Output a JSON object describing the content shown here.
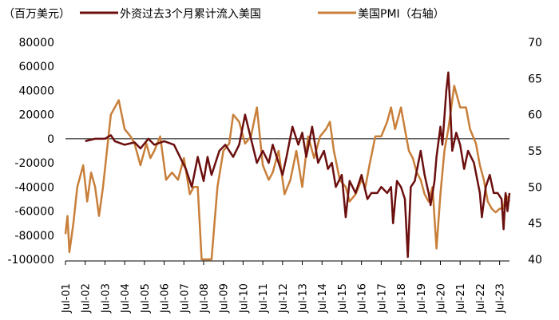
{
  "chart_data": {
    "type": "line",
    "unit_label": "（百万美元）",
    "x_ticks": [
      "Jul-01",
      "Jul-02",
      "Jul-03",
      "Jul-04",
      "Jul-05",
      "Jul-06",
      "Jul-07",
      "Jul-08",
      "Jul-09",
      "Jul-10",
      "Jul-11",
      "Jul-12",
      "Jul-13",
      "Jul-14",
      "Jul-15",
      "Jul-16",
      "Jul-17",
      "Jul-18",
      "Jul-19",
      "Jul-20",
      "Jul-21",
      "Jul-22",
      "Jul-23"
    ],
    "x_range": [
      2001.5,
      2024.0
    ],
    "y_left": {
      "min": -100000,
      "max": 80000,
      "ticks": [
        -100000,
        -80000,
        -60000,
        -40000,
        -20000,
        0,
        20000,
        40000,
        60000,
        80000
      ],
      "tick_labels": [
        "-100000",
        "-80000",
        "-60000",
        "-40000",
        "-20000",
        "0",
        "20000",
        "40000",
        "60000",
        "80000"
      ]
    },
    "y_right": {
      "min": 40,
      "max": 70,
      "ticks": [
        40,
        45,
        50,
        55,
        60,
        65,
        70
      ],
      "tick_labels": [
        "40",
        "45",
        "50",
        "55",
        "60",
        "65",
        "70"
      ]
    },
    "colors": {
      "flows": "#6b0f0f",
      "pmi": "#c87f3a"
    },
    "series": [
      {
        "name": "外资过去3个月累计流入美国",
        "axis": "left",
        "points": [
          [
            2002.5,
            -2000
          ],
          [
            2003.0,
            0
          ],
          [
            2003.5,
            0
          ],
          [
            2003.8,
            3000
          ],
          [
            2004.0,
            -2000
          ],
          [
            2004.5,
            -5000
          ],
          [
            2005.0,
            -3000
          ],
          [
            2005.3,
            -8000
          ],
          [
            2005.7,
            0
          ],
          [
            2006.0,
            -5000
          ],
          [
            2006.5,
            -2000
          ],
          [
            2007.0,
            -5000
          ],
          [
            2007.3,
            -15000
          ],
          [
            2007.6,
            -25000
          ],
          [
            2007.9,
            -40000
          ],
          [
            2008.2,
            -15000
          ],
          [
            2008.5,
            -35000
          ],
          [
            2008.7,
            -15000
          ],
          [
            2008.9,
            -30000
          ],
          [
            2009.3,
            -10000
          ],
          [
            2009.6,
            -5000
          ],
          [
            2010.0,
            -15000
          ],
          [
            2010.3,
            -5000
          ],
          [
            2010.6,
            20000
          ],
          [
            2010.9,
            0
          ],
          [
            2011.2,
            -20000
          ],
          [
            2011.5,
            -10000
          ],
          [
            2011.8,
            -20000
          ],
          [
            2012.0,
            -5000
          ],
          [
            2012.3,
            -20000
          ],
          [
            2012.5,
            -30000
          ],
          [
            2012.7,
            -15000
          ],
          [
            2013.0,
            10000
          ],
          [
            2013.3,
            -5000
          ],
          [
            2013.5,
            5000
          ],
          [
            2013.7,
            -15000
          ],
          [
            2014.0,
            10000
          ],
          [
            2014.3,
            -20000
          ],
          [
            2014.6,
            -10000
          ],
          [
            2014.8,
            -25000
          ],
          [
            2015.0,
            -20000
          ],
          [
            2015.2,
            -40000
          ],
          [
            2015.5,
            -30000
          ],
          [
            2015.7,
            -65000
          ],
          [
            2015.9,
            -35000
          ],
          [
            2016.2,
            -45000
          ],
          [
            2016.5,
            -30000
          ],
          [
            2016.8,
            -50000
          ],
          [
            2017.0,
            -45000
          ],
          [
            2017.3,
            -45000
          ],
          [
            2017.5,
            -40000
          ],
          [
            2017.8,
            -45000
          ],
          [
            2018.0,
            -40000
          ],
          [
            2018.1,
            -70000
          ],
          [
            2018.3,
            -35000
          ],
          [
            2018.5,
            -40000
          ],
          [
            2018.7,
            -50000
          ],
          [
            2018.85,
            -98000
          ],
          [
            2019.0,
            -40000
          ],
          [
            2019.2,
            -35000
          ],
          [
            2019.5,
            -10000
          ],
          [
            2019.7,
            -30000
          ],
          [
            2019.9,
            -45000
          ],
          [
            2020.0,
            -55000
          ],
          [
            2020.2,
            -35000
          ],
          [
            2020.3,
            -15000
          ],
          [
            2020.5,
            10000
          ],
          [
            2020.6,
            -5000
          ],
          [
            2020.8,
            40000
          ],
          [
            2020.9,
            55000
          ],
          [
            2021.0,
            25000
          ],
          [
            2021.1,
            -10000
          ],
          [
            2021.3,
            5000
          ],
          [
            2021.5,
            -5000
          ],
          [
            2021.7,
            -25000
          ],
          [
            2021.9,
            -10000
          ],
          [
            2022.2,
            -20000
          ],
          [
            2022.5,
            -45000
          ],
          [
            2022.6,
            -65000
          ],
          [
            2022.8,
            -40000
          ],
          [
            2023.0,
            -30000
          ],
          [
            2023.2,
            -45000
          ],
          [
            2023.4,
            -45000
          ],
          [
            2023.6,
            -50000
          ],
          [
            2023.7,
            -75000
          ],
          [
            2023.8,
            -45000
          ],
          [
            2023.9,
            -60000
          ],
          [
            2024.0,
            -45000
          ]
        ]
      },
      {
        "name": "美国PMI（右轴）",
        "axis": "right",
        "points": [
          [
            2001.5,
            43.5
          ],
          [
            2001.6,
            46
          ],
          [
            2001.7,
            41
          ],
          [
            2001.9,
            45
          ],
          [
            2002.1,
            50
          ],
          [
            2002.4,
            53
          ],
          [
            2002.6,
            48
          ],
          [
            2002.8,
            52
          ],
          [
            2003.0,
            50
          ],
          [
            2003.2,
            46
          ],
          [
            2003.4,
            50
          ],
          [
            2003.6,
            55
          ],
          [
            2003.8,
            60
          ],
          [
            2004.0,
            61
          ],
          [
            2004.2,
            62
          ],
          [
            2004.5,
            58
          ],
          [
            2004.8,
            57
          ],
          [
            2005.0,
            56
          ],
          [
            2005.3,
            53
          ],
          [
            2005.6,
            56
          ],
          [
            2005.8,
            54
          ],
          [
            2006.0,
            55
          ],
          [
            2006.3,
            57
          ],
          [
            2006.6,
            51
          ],
          [
            2006.9,
            52
          ],
          [
            2007.2,
            51
          ],
          [
            2007.5,
            54
          ],
          [
            2007.8,
            49
          ],
          [
            2008.0,
            50
          ],
          [
            2008.2,
            50
          ],
          [
            2008.4,
            40
          ],
          [
            2008.9,
            40
          ],
          [
            2009.2,
            50
          ],
          [
            2009.5,
            55
          ],
          [
            2009.8,
            56
          ],
          [
            2010.0,
            60
          ],
          [
            2010.3,
            59
          ],
          [
            2010.6,
            56
          ],
          [
            2010.9,
            57
          ],
          [
            2011.2,
            61
          ],
          [
            2011.5,
            53
          ],
          [
            2011.8,
            51
          ],
          [
            2012.0,
            52
          ],
          [
            2012.3,
            55
          ],
          [
            2012.6,
            49
          ],
          [
            2012.9,
            51
          ],
          [
            2013.2,
            55
          ],
          [
            2013.5,
            50
          ],
          [
            2013.8,
            57
          ],
          [
            2014.1,
            54
          ],
          [
            2014.4,
            57
          ],
          [
            2014.7,
            58
          ],
          [
            2014.9,
            59
          ],
          [
            2015.1,
            55
          ],
          [
            2015.4,
            51
          ],
          [
            2015.7,
            50
          ],
          [
            2015.9,
            48
          ],
          [
            2016.2,
            49
          ],
          [
            2016.5,
            51
          ],
          [
            2016.7,
            50
          ],
          [
            2016.9,
            53
          ],
          [
            2017.2,
            57
          ],
          [
            2017.5,
            57
          ],
          [
            2017.8,
            59
          ],
          [
            2018.0,
            61
          ],
          [
            2018.2,
            58
          ],
          [
            2018.5,
            61
          ],
          [
            2018.7,
            58
          ],
          [
            2018.9,
            55
          ],
          [
            2019.1,
            54
          ],
          [
            2019.3,
            52
          ],
          [
            2019.5,
            51
          ],
          [
            2019.7,
            49
          ],
          [
            2019.9,
            48
          ],
          [
            2020.1,
            50
          ],
          [
            2020.3,
            41.5
          ],
          [
            2020.5,
            49
          ],
          [
            2020.7,
            55
          ],
          [
            2020.9,
            58
          ],
          [
            2021.0,
            60
          ],
          [
            2021.2,
            64
          ],
          [
            2021.5,
            61
          ],
          [
            2021.8,
            61
          ],
          [
            2022.0,
            58
          ],
          [
            2022.3,
            56
          ],
          [
            2022.5,
            53
          ],
          [
            2022.7,
            51
          ],
          [
            2022.9,
            48
          ],
          [
            2023.1,
            47
          ],
          [
            2023.3,
            46.5
          ],
          [
            2023.5,
            47
          ],
          [
            2023.7,
            47
          ],
          [
            2023.8,
            49
          ],
          [
            2024.0,
            48
          ]
        ]
      }
    ],
    "legend_placement": "top"
  }
}
